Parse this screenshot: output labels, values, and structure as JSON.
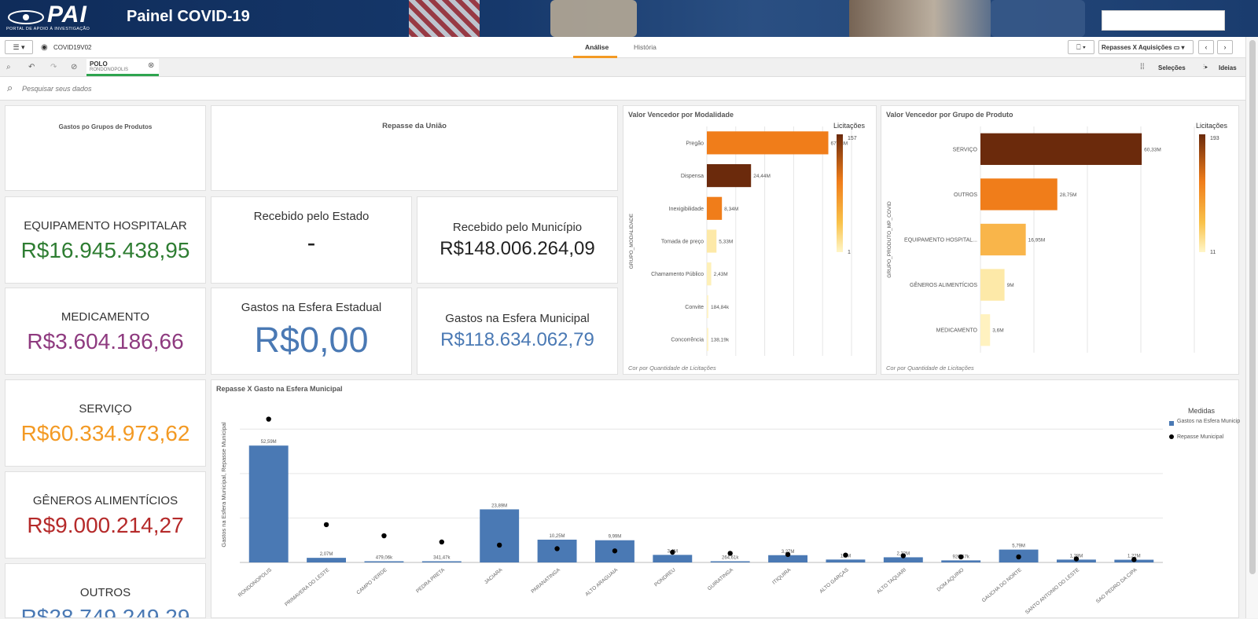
{
  "app": {
    "logo_text": "PAI",
    "logo_sub": "PORTAL DE APOIO À INVESTIGAÇÃO",
    "title": "Painel COVID-19"
  },
  "toolbar": {
    "doc_name": "COVID19V02",
    "tab_analise": "Análise",
    "tab_historia": "História",
    "sheet_name": "Repasses X Aquisições"
  },
  "selection": {
    "field": "POLO",
    "value": "RONDONOPOLIS",
    "selecoes": "Seleções",
    "ideias": "Ideias"
  },
  "search": {
    "placeholder": "Pesquisar seus dados"
  },
  "colors": {
    "green": "#2e7d32",
    "purple": "#8e3a7f",
    "blue": "#4a79b4",
    "orange": "#f39a24",
    "red": "#b52a2a",
    "navy": "#1a3c6e"
  },
  "cards": {
    "gastos_grupos": "Gastos po Grupos de Produtos",
    "repasse_uniao": "Repasse da União",
    "equip_label": "EQUIPAMENTO HOSPITALAR",
    "equip_value": "R$16.945.438,95",
    "med_label": "MEDICAMENTO",
    "med_value": "R$3.604.186,66",
    "serv_label": "SERVIÇO",
    "serv_value": "R$60.334.973,62",
    "gen_label": "GÊNEROS ALIMENTÍCIOS",
    "gen_value": "R$9.000.214,27",
    "outros_label": "OUTROS",
    "outros_value": "R$28.749.249,29",
    "rec_estado_label": "Recebido pelo Estado",
    "rec_estado_value": "-",
    "rec_mun_label": "Recebido pelo Município",
    "rec_mun_value": "R$148.006.264,09",
    "gasto_est_label": "Gastos na Esfera Estadual",
    "gasto_est_value": "R$0,00",
    "gasto_mun_label": "Gastos na Esfera Municipal",
    "gasto_mun_value": "R$118.634.062,79"
  },
  "chart_data": [
    {
      "type": "bar",
      "orientation": "horizontal",
      "title": "Valor Vencedor por Modalidade",
      "ylabel": "GRUPO_MODALIDADE",
      "footer": "Cor por Quantidade de Licitações",
      "legend_title": "Licitações",
      "legend_max": "157",
      "legend_min": "1",
      "categories": [
        "Pregão",
        "Dispensa",
        "Inexigibilidade",
        "Tomada de preço",
        "Chamamento Público",
        "Convite",
        "Concorrência"
      ],
      "values": [
        67.18,
        24.44,
        8.34,
        5.33,
        2.43,
        0.18484,
        0.13819
      ],
      "labels": [
        "67,18M",
        "24,44M",
        "8,34M",
        "5,33M",
        "2,43M",
        "184,84k",
        "138,19k"
      ],
      "colors": [
        "#f07d1a",
        "#6b2a0c",
        "#f07d1a",
        "#fde9a8",
        "#fef0b8",
        "#fff4c8",
        "#fff4c8"
      ]
    },
    {
      "type": "bar",
      "orientation": "horizontal",
      "title": "Valor Vencedor por Grupo de Produto",
      "ylabel": "GRUPO_PRODUTO_MP_COVID",
      "footer": "Cor por Quantidade de Licitações",
      "legend_title": "Licitações",
      "legend_max": "193",
      "legend_min": "11",
      "categories": [
        "SERVIÇO",
        "OUTROS",
        "EQUIPAMENTO HOSPITAL...",
        "GÊNEROS ALIMENTÍCIOS",
        "MEDICAMENTO"
      ],
      "values": [
        60.33,
        28.75,
        16.95,
        9.0,
        3.6
      ],
      "labels": [
        "60,33M",
        "28,75M",
        "16,95M",
        "9M",
        "3,6M"
      ],
      "colors": [
        "#6b2a0c",
        "#f07d1a",
        "#f9b54a",
        "#fde9a8",
        "#fff2c0"
      ]
    },
    {
      "type": "bar",
      "title": "Repasse X Gasto na Esfera Municipal",
      "ylabel": "Gastos na Esfera Municipal, Repasse Municipal",
      "legend_title": "Medidas",
      "series": [
        {
          "name": "Gastos na Esfera Municipal",
          "color": "#4a79b4",
          "values": [
            52.59,
            2.07,
            0.47906,
            0.34147,
            23.89,
            10.25,
            9.99,
            3.4,
            0.26461,
            3.27,
            1.3,
            2.32,
            0.92667,
            5.79,
            1.28,
            1.22
          ]
        },
        {
          "name": "Repasse Municipal",
          "color": "#000000",
          "values": [
            64.5,
            17.0,
            12.0,
            9.2,
            7.8,
            6.2,
            5.2,
            4.6,
            4.1,
            3.6,
            3.3,
            3.0,
            2.5,
            2.5,
            1.6,
            1.3
          ]
        }
      ],
      "categories": [
        "RONDONOPOLIS",
        "PRIMAVERA DO LESTE",
        "CAMPO VERDE",
        "PEDRA PRETA",
        "JACIARA",
        "PARANATINGA",
        "ALTO ARAGUAIA",
        "PONDREU",
        "GUIRATINGA",
        "ITIQUIRA",
        "ALTO GARÇAS",
        "ALTO TAQUARI",
        "DOM AQUINO",
        "GAUCHA DO NORTE",
        "SANTO ANTONIO DO LESTE",
        "SAO PEDRO DA CIPA"
      ],
      "labels": [
        "52,59M",
        "2,07M",
        "479,06k",
        "341,47k",
        "23,89M",
        "10,25M",
        "9,99M",
        "3,4M",
        "264,61k",
        "3,27M",
        "1,3M",
        "2,32M",
        "926,67k",
        "5,79M",
        "1,28M",
        "1,22M"
      ]
    }
  ]
}
